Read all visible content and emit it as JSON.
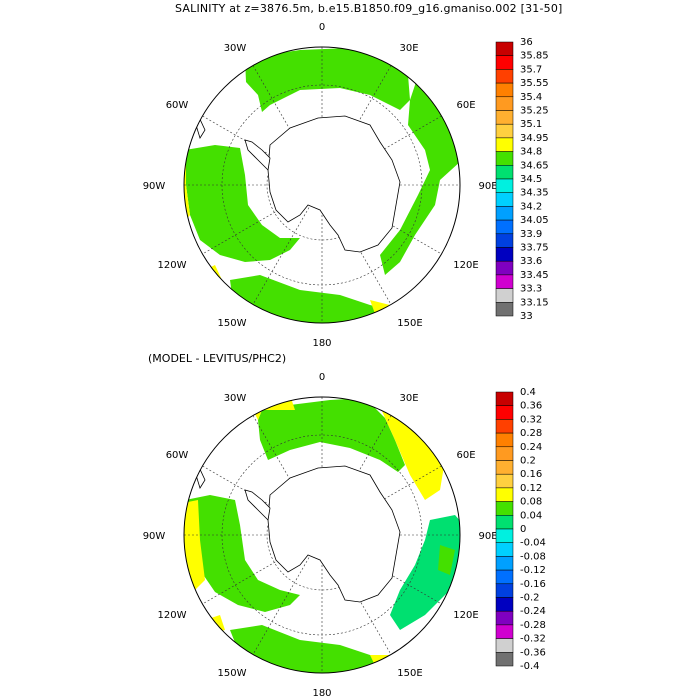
{
  "header": {
    "title": "SALINITY at z=3876.5m, b.e15.B1850.f09_g16.gmaniso.002 [31-50]",
    "subtitle": "(MODEL - LEVITUS/PHC2)"
  },
  "maps": [
    {
      "id": "salinity",
      "longitude_labels": {
        "lon_0": "0",
        "lon_30E": "30E",
        "lon_60E": "60E",
        "lon_90E": "90E",
        "lon_120E": "120E",
        "lon_150E": "150E",
        "lon_180": "180",
        "lon_150W": "150W",
        "lon_120W": "120W",
        "lon_90W": "90W",
        "lon_60W": "60W",
        "lon_30W": "30W"
      },
      "colorbar": {
        "labels": [
          "36",
          "35.85",
          "35.7",
          "35.55",
          "35.4",
          "35.25",
          "35.1",
          "34.95",
          "34.8",
          "34.65",
          "34.5",
          "34.35",
          "34.2",
          "34.05",
          "33.9",
          "33.75",
          "33.6",
          "33.45",
          "33.3",
          "33.15",
          "33"
        ],
        "colors": [
          "#c80000",
          "#ff0000",
          "#ff4000",
          "#ff8000",
          "#ff9a20",
          "#ffb030",
          "#ffd040",
          "#ffff00",
          "#44e000",
          "#00e070",
          "#00f0e0",
          "#00d0ff",
          "#00a0ff",
          "#0070ff",
          "#0040e0",
          "#0000c0",
          "#8000c0",
          "#d000d0",
          "#d0d0d0",
          "#707070"
        ]
      }
    },
    {
      "id": "difference",
      "longitude_labels": {
        "lon_0": "0",
        "lon_30E": "30E",
        "lon_60E": "60E",
        "lon_90E": "90E",
        "lon_120E": "120E",
        "lon_150E": "150E",
        "lon_180": "180",
        "lon_150W": "150W",
        "lon_120W": "120W",
        "lon_90W": "90W",
        "lon_60W": "60W",
        "lon_30W": "30W"
      },
      "colorbar": {
        "labels": [
          "0.4",
          "0.36",
          "0.32",
          "0.28",
          "0.24",
          "0.2",
          "0.16",
          "0.12",
          "0.08",
          "0.04",
          "0",
          "-0.04",
          "-0.08",
          "-0.12",
          "-0.16",
          "-0.2",
          "-0.24",
          "-0.28",
          "-0.32",
          "-0.36",
          "-0.4"
        ],
        "colors": [
          "#c80000",
          "#ff0000",
          "#ff4000",
          "#ff8000",
          "#ff9a20",
          "#ffb030",
          "#ffd040",
          "#ffff00",
          "#44e000",
          "#00e070",
          "#00f0e0",
          "#00d0ff",
          "#00a0ff",
          "#0070ff",
          "#0040e0",
          "#0000c0",
          "#8000c0",
          "#d000d0",
          "#d0d0d0",
          "#707070"
        ]
      }
    }
  ]
}
